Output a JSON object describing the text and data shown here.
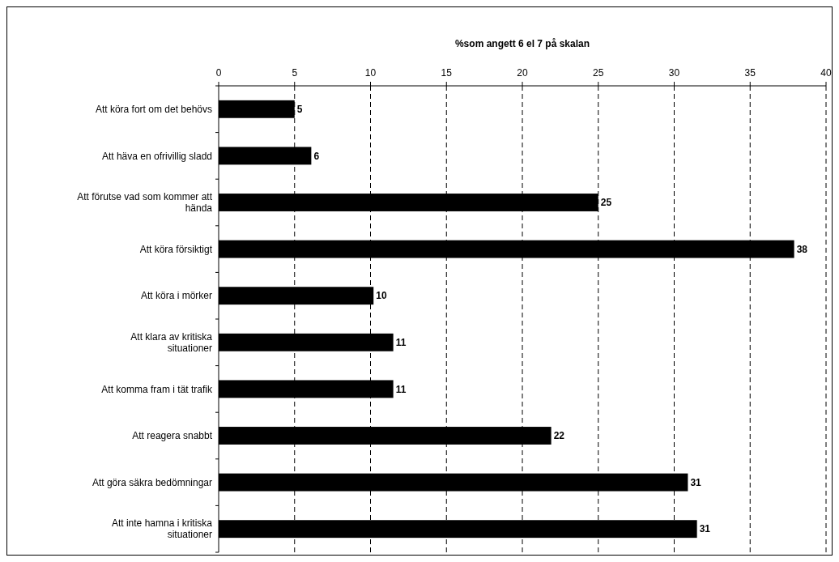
{
  "chart_data": {
    "type": "bar",
    "orientation": "horizontal",
    "xlabel": "%som angett 6 el 7 på skalan",
    "categories": [
      "Att köra fort om det behövs",
      "Att häva en ofrivillig sladd",
      "Att förutse vad som kommer att hända",
      "Att köra försiktigt",
      "Att köra i mörker",
      "Att klara av kritiska situationer",
      "Att komma fram i tät trafik",
      "Att reagera snabbt",
      "Att göra säkra bedömningar",
      "Att inte hamna i kritiska situationer"
    ],
    "values": [
      5.0,
      6.1,
      25.0,
      37.9,
      10.2,
      11.5,
      11.5,
      21.9,
      30.9,
      31.5
    ],
    "value_labels": [
      "5",
      "6",
      "25",
      "38",
      "10",
      "11",
      "11",
      "22",
      "31",
      "31"
    ],
    "color": "#000000",
    "xlim": [
      0,
      40
    ],
    "xticks": [
      0,
      5,
      10,
      15,
      20,
      25,
      30,
      35,
      40
    ],
    "grid": "x"
  }
}
